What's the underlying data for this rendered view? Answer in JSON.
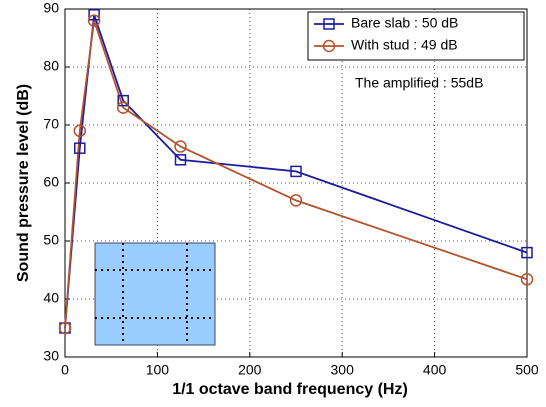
{
  "chart_data": {
    "type": "line",
    "xlabel": "1/1 octave band frequency (Hz)",
    "ylabel": "Sound pressure level (dB)",
    "annotation": "The amplified : 55dB",
    "x": [
      0,
      16,
      31.5,
      63,
      125,
      250,
      500
    ],
    "series": [
      {
        "name": "Bare slab : 50 dB",
        "color": "#1c1c9c",
        "marker": "square",
        "values": [
          35,
          66,
          89,
          74.2,
          64,
          62,
          48
        ]
      },
      {
        "name": "With stud : 49 dB",
        "color": "#b4532c",
        "marker": "circle",
        "values": [
          35,
          69,
          88,
          73,
          66.3,
          57,
          43.4
        ]
      }
    ],
    "xlim": [
      0,
      500
    ],
    "xticks": [
      0,
      100,
      200,
      300,
      400,
      500
    ],
    "ylim": [
      30,
      90
    ],
    "yticks": [
      30,
      40,
      50,
      60,
      70,
      80,
      90
    ],
    "grid": true,
    "legend": "upper right"
  }
}
